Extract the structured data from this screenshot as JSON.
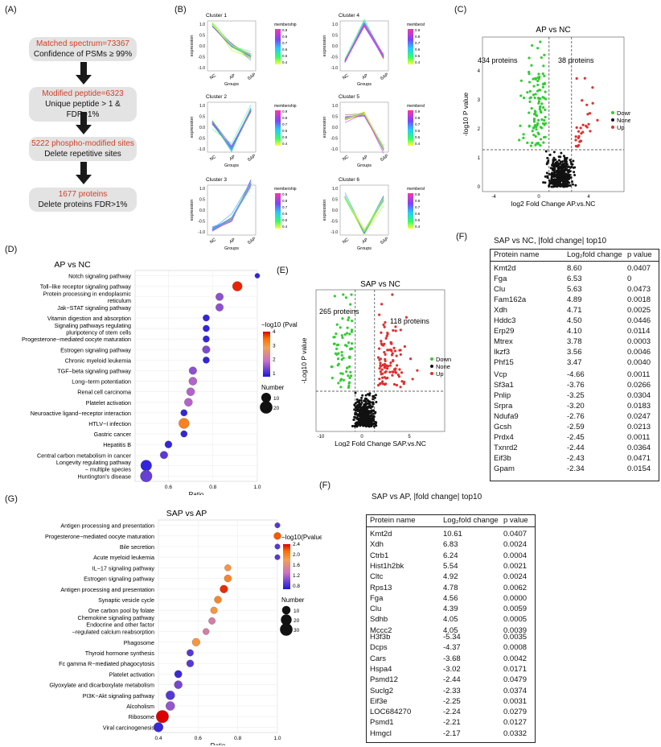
{
  "panel_labels": {
    "a": "(A)",
    "b": "(B)",
    "c": "(C)",
    "d": "(D)",
    "e": "(E)",
    "f1": "(F)",
    "f2": "(F)",
    "g": "(G)"
  },
  "flowchart": [
    {
      "top": "Matched spectrum=73367",
      "bottom": "Confidence of PSMs ≥ 99%"
    },
    {
      "top": "Modified peptide=6323",
      "bottom": "Unique peptide > 1 & FDR>1%"
    },
    {
      "top": "5222 phospho-modified sites",
      "bottom": "Delete repetitive sites"
    },
    {
      "top": "1677 proteins",
      "bottom": "Delete proteins FDR>1%"
    }
  ],
  "clusters": {
    "titles": [
      "Cluster 1",
      "Cluster 4",
      "Cluster 2",
      "Cluster 5",
      "Cluster 3",
      "Cluster 6"
    ],
    "xlabel": "Groups",
    "ylabel": "expression",
    "xticks": [
      "NC",
      "AP",
      "SAP"
    ],
    "legend_title": "membership",
    "profiles": [
      [
        1.0,
        0.0,
        -0.5
      ],
      [
        -0.7,
        1.0,
        -0.5
      ],
      [
        0.2,
        -1.0,
        0.8
      ],
      [
        0.4,
        0.6,
        -1.0
      ],
      [
        -0.9,
        -0.4,
        1.2
      ],
      [
        0.6,
        -1.0,
        0.5
      ]
    ]
  },
  "chart_data": [
    {
      "type": "scatter",
      "title": "AP vs NC",
      "xlabel": "log2 Fold Change AP.vs.NC",
      "ylabel": "-log10 P value",
      "annotations": [
        "434 proteins",
        "38 proteins"
      ],
      "legend": [
        "Down",
        "None",
        "Up"
      ],
      "colors": {
        "Down": "#33cc33",
        "None": "#111111",
        "Up": "#e03030"
      },
      "xticks": [
        "-4",
        "0",
        "4"
      ],
      "yticks": [
        "0",
        "1",
        "2",
        "3",
        "4"
      ]
    },
    {
      "type": "scatter",
      "title": "SAP vs NC",
      "xlabel": "Log2 Fold Change SAP.vs.NC",
      "ylabel": "-Log10 P value",
      "annotations": [
        "265 proteins",
        "118 proteins"
      ],
      "legend": [
        "Down",
        "None",
        "Up"
      ],
      "colors": {
        "Down": "#33cc33",
        "None": "#111111",
        "Up": "#e03030"
      },
      "xticks": [
        "-10",
        "0",
        "5"
      ]
    },
    {
      "type": "scatter",
      "title": "AP vs NC",
      "xlabel": "Ratio",
      "xlim": [
        0.45,
        1.0
      ],
      "xticks": [
        "0.6",
        "0.8",
        "1.0"
      ],
      "legend_title": "−log10 (Pvalue)",
      "color_ticks": [
        "1",
        "2",
        "3",
        "4"
      ],
      "size_title": "Number",
      "size_ticks": [
        "10",
        "20"
      ],
      "categories": [
        "Notch signaling pathway",
        "Toll−like receptor signaling pathway",
        "Protein processing in endoplasmic reticulum",
        "Jak−STAT signaling pathway",
        "Vitamin digestion and absorption",
        "Signaling pathways regulating pluripotency of stem cells",
        "Progesterone−mediated oocyte maturation",
        "Estrogen signaling pathway",
        "Chronic myeloid leukemia",
        "TGF−beta signaling pathway",
        "Long−term potentiation",
        "Renal cell carcinoma",
        "Platelet activation",
        "Neuroactive ligand−receptor interaction",
        "HTLV−I infection",
        "Gastric cancer",
        "Hepatitis B",
        "Central carbon metabolism in cancer",
        "Longevity regulating pathway − multiple species",
        "Huntington's disease"
      ],
      "labels_display": [
        "Notch signaling pathway",
        "Toll−like receptor signaling pathway",
        "Protein processing in endoplasmic|reticulum",
        "Jak−STAT signaling pathway",
        "Vitamin digestion and absorption",
        "Signaling pathways regulating|pluripotency of stem cells",
        "Progesterone−mediated oocyte maturation",
        "Estrogen signaling pathway",
        "Chronic myeloid leukemia",
        "TGF−beta signaling pathway",
        "Long−term potentiation",
        "Renal cell carcinoma",
        "Platelet activation",
        "Neuroactive ligand−receptor interaction",
        "HTLV−I infection",
        "Gastric cancer",
        "Hepatitis B",
        "Central carbon metabolism in cancer",
        "Longevity regulating pathway|− multiple species",
        "Huntington's disease"
      ],
      "x": [
        1.0,
        0.91,
        0.83,
        0.83,
        0.77,
        0.77,
        0.77,
        0.77,
        0.77,
        0.71,
        0.71,
        0.7,
        0.69,
        0.67,
        0.67,
        0.67,
        0.6,
        0.58,
        0.5,
        0.5
      ],
      "color": [
        0.5,
        4.0,
        1.2,
        1.2,
        0.5,
        0.5,
        0.5,
        1.1,
        0.5,
        1.2,
        1.5,
        1.5,
        1.5,
        0.5,
        3.3,
        0.5,
        0.5,
        0.8,
        0.5,
        0.9
      ],
      "size": [
        1,
        10,
        5,
        5,
        3,
        3,
        3,
        5,
        3,
        5,
        6,
        6,
        6,
        3,
        12,
        3,
        4,
        5,
        14,
        17
      ]
    },
    {
      "type": "scatter",
      "title": "SAP vs AP",
      "xlabel": "Ratio",
      "xlim": [
        0.4,
        1.0
      ],
      "xticks": [
        "0.4",
        "0.6",
        "0.8",
        "1.0"
      ],
      "legend_title": "−log10(Pvalue)",
      "color_ticks": [
        "0.8",
        "1.2",
        "1.6",
        "2.0",
        "2.4"
      ],
      "size_title": "Number",
      "size_ticks": [
        "10",
        "20",
        "30"
      ],
      "categories": [
        "Antigen processing and presentation",
        "Progesterone−mediated oocyte maturation",
        "Bile secretion",
        "Acute myeloid leukemia",
        "IL−17 signaling pathway",
        "Estrogen signaling pathway",
        "Antigen processing and presentation",
        "Synaptic vesicle cycle",
        "One carbon pool by folate",
        "Chemokine signaling pathway",
        "Endocrine and other factor −regulated calcium reabsorption",
        "Phagosome",
        "Thyroid hormone synthesis",
        "Fc gamma R−mediated phagocytosis",
        "Platelet activation",
        "Glyoxylate and dicarboxylate metabolism",
        "PI3K−Akt signaling pathway",
        "Alcoholism",
        "Ribosome",
        "Viral carcinogenesis"
      ],
      "labels_display": [
        "Antigen processing and presentation",
        "Progesterone−mediated oocyte maturation",
        "Bile secretion",
        "Acute myeloid leukemia",
        "IL−17 signaling pathway",
        "Estrogen signaling pathway",
        "Antigen processing and presentation",
        "Synaptic vesicle cycle",
        "One carbon pool by folate",
        "Chemokine signaling pathway|Endocrine and other factor",
        "−regulated calcium reabsorption",
        "Phagosome",
        "Thyroid hormone synthesis",
        "Fc gamma R−mediated phagocytosis",
        "Platelet activation",
        "Glyoxylate and dicarboxylate metabolism",
        "PI3K−Akt signaling pathway",
        "Alcoholism",
        "Ribosome",
        "Viral carcinogenesis"
      ],
      "x": [
        1.0,
        1.0,
        1.0,
        1.0,
        0.75,
        0.75,
        0.73,
        0.7,
        0.68,
        0.67,
        0.64,
        0.59,
        0.56,
        0.56,
        0.5,
        0.5,
        0.46,
        0.46,
        0.42,
        0.4
      ],
      "color": [
        1.0,
        2.2,
        1.0,
        1.0,
        1.9,
        2.0,
        2.3,
        2.0,
        1.9,
        1.5,
        1.5,
        1.9,
        1.0,
        1.0,
        0.9,
        1.1,
        1.0,
        1.2,
        2.4,
        0.9
      ],
      "size": [
        2,
        6,
        2,
        2,
        4,
        6,
        8,
        6,
        5,
        5,
        4,
        8,
        5,
        6,
        7,
        9,
        12,
        12,
        30,
        14
      ]
    }
  ],
  "table1": {
    "title": "SAP vs NC, |fold change| top10",
    "headers": [
      "Protein name",
      "Log₂fold change",
      "p value"
    ],
    "up": [
      [
        "Kmt2d",
        "8.60",
        "0.0407"
      ],
      [
        "Fga",
        "6.53",
        "0"
      ],
      [
        "Clu",
        "5.63",
        "0.0473"
      ],
      [
        "Fam162a",
        "4.89",
        "0.0018"
      ],
      [
        "Xdh",
        "4.71",
        "0.0025"
      ],
      [
        "Hddc3",
        "4.50",
        "0.0446"
      ],
      [
        "Erp29",
        "4.10",
        "0.0114"
      ],
      [
        "Mtrex",
        "3.78",
        "0.0003"
      ],
      [
        "Ikzf3",
        "3.56",
        "0.0046"
      ],
      [
        "Phf15",
        "3.47",
        "0.0040"
      ]
    ],
    "down": [
      [
        "Vcp",
        "-4.66",
        "0.0011"
      ],
      [
        "Sf3a1",
        "-3.76",
        "0.0266"
      ],
      [
        "Pnlip",
        "-3.25",
        "0.0304"
      ],
      [
        "Srpra",
        "-3.20",
        "0.0183"
      ],
      [
        "Ndufa9",
        "-2.76",
        "0.0247"
      ],
      [
        "Gcsh",
        "-2.59",
        "0.0213"
      ],
      [
        "Prdx4",
        "-2.45",
        "0.0011"
      ],
      [
        "Txnrd2",
        "-2.44",
        "0.0364"
      ],
      [
        "Eif3b",
        "-2.43",
        "0.0471"
      ],
      [
        "Gpam",
        "-2.34",
        "0.0154"
      ]
    ]
  },
  "table2": {
    "title": "SAP vs AP, |fold change| top10",
    "headers": [
      "Protein name",
      "Log₂fold change",
      "p value"
    ],
    "up": [
      [
        "Kmt2d",
        "10.61",
        "0.0407"
      ],
      [
        "Xdh",
        "6.83",
        "0.0024"
      ],
      [
        "Ctrb1",
        "6.24",
        "0.0004"
      ],
      [
        "Hist1h2bk",
        "5.54",
        "0.0021"
      ],
      [
        "Cltc",
        "4.92",
        "0.0024"
      ],
      [
        "Rps13",
        "4.78",
        "0.0062"
      ],
      [
        "Fga",
        "4.56",
        "0.0000"
      ],
      [
        "Clu",
        "4.39",
        "0.0059"
      ],
      [
        "Sdhb",
        "4.05",
        "0.0005"
      ],
      [
        "Mccc2",
        "4.05",
        "0.0039"
      ]
    ],
    "down": [
      [
        "H3f3b",
        "-5.34",
        "0.0035"
      ],
      [
        "Dcps",
        "-4.37",
        "0.0008"
      ],
      [
        "Cars",
        "-3.68",
        "0.0042"
      ],
      [
        "Hspa4",
        "-3.02",
        "0.0171"
      ],
      [
        "Psmd12",
        "-2.44",
        "0.0479"
      ],
      [
        "Suclg2",
        "-2.33",
        "0.0374"
      ],
      [
        "Eif3e",
        "-2.25",
        "0.0031"
      ],
      [
        "LOC684270",
        "-2.24",
        "0.0279"
      ],
      [
        "Psmd1",
        "-2.21",
        "0.0127"
      ],
      [
        "Hmgcl",
        "-2.17",
        "0.0332"
      ]
    ]
  }
}
